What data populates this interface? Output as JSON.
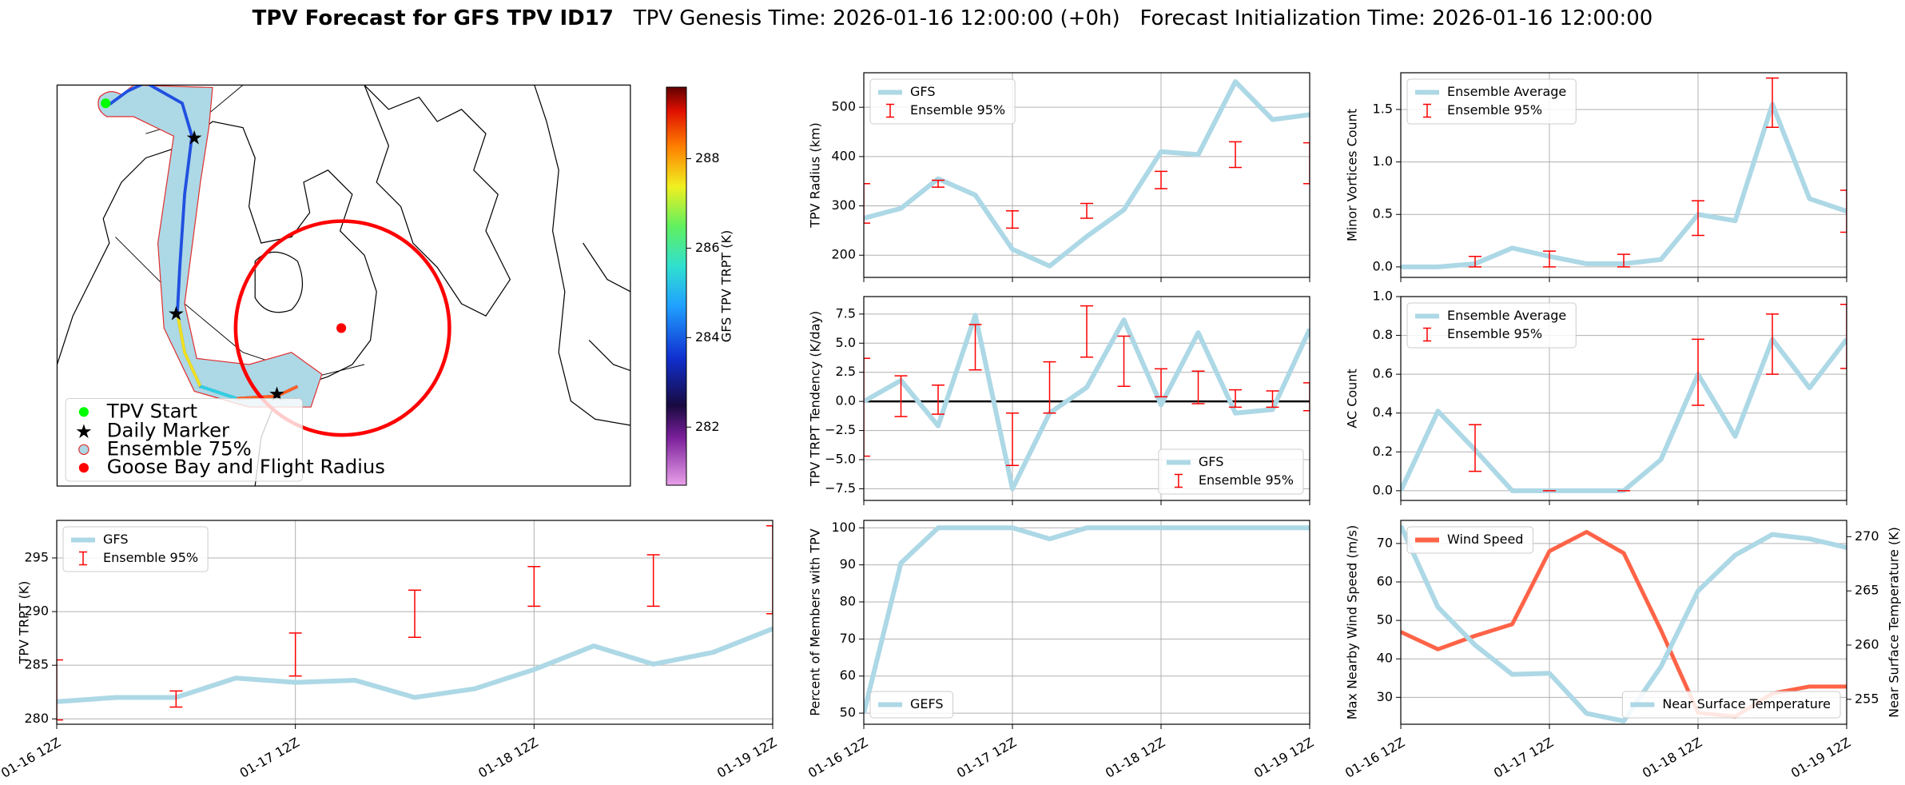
{
  "title": "TPV Forecast for GFS TPV ID17",
  "subtitle": "TPV Genesis Time: 2026-01-16 12:00:00 (+0h)   Forecast Initialization Time: 2026-01-16 12:00:00",
  "chart_data": [
    {
      "type": "map",
      "legend": [
        "TPV Start",
        "Daily Marker",
        "Ensemble 75%",
        "Goose Bay and Flight Radius"
      ],
      "colorbar": {
        "label": "GFS TPV TRPT (K)",
        "lim": [
          280.7,
          289.6
        ],
        "ticks": [
          282,
          284,
          286,
          288
        ]
      }
    },
    {
      "type": "line",
      "ylabel": "TPV Radius (km)",
      "legend": "upper left",
      "grid": true,
      "categories": [
        null,
        null,
        null,
        null,
        null,
        null,
        null,
        null,
        null,
        null,
        null,
        null,
        null
      ],
      "series": [
        {
          "name": "GFS",
          "color": "#add8e6",
          "values": [
            275,
            295,
            355,
            322,
            212,
            178,
            238,
            292,
            410,
            404,
            552,
            475,
            485
          ]
        }
      ],
      "errorbars": {
        "name": "Ensemble 95%",
        "color": "#ff0000",
        "low": [
          265,
          null,
          338,
          null,
          255,
          null,
          275,
          null,
          335,
          null,
          378,
          null,
          345
        ],
        "high": [
          345,
          null,
          352,
          null,
          290,
          null,
          305,
          null,
          370,
          null,
          430,
          null,
          428
        ]
      },
      "ylim": [
        155,
        570
      ],
      "yticks": [
        200,
        300,
        400,
        500
      ]
    },
    {
      "type": "line",
      "ylabel": "Minor Vortices Count",
      "legend": "upper left",
      "grid": true,
      "categories": [
        null,
        null,
        null,
        null,
        null,
        null,
        null,
        null,
        null,
        null,
        null,
        null,
        null
      ],
      "series": [
        {
          "name": "Ensemble Average",
          "color": "#add8e6",
          "values": [
            0,
            0,
            0.03,
            0.18,
            0.1,
            0.03,
            0.03,
            0.07,
            0.5,
            0.44,
            1.55,
            0.65,
            0.53
          ]
        }
      ],
      "errorbars": {
        "name": "Ensemble 95%",
        "color": "#ff0000",
        "low": [
          null,
          null,
          0,
          null,
          0,
          null,
          0,
          null,
          0.3,
          null,
          1.33,
          null,
          0.33
        ],
        "high": [
          null,
          null,
          0.1,
          null,
          0.15,
          null,
          0.12,
          null,
          0.63,
          null,
          1.8,
          null,
          0.73
        ]
      },
      "ylim": [
        -0.1,
        1.85
      ],
      "yticks": [
        {
          "value": 0,
          "label": "0.0"
        },
        {
          "value": 0.5,
          "label": "0.5"
        },
        {
          "value": 1,
          "label": "1.0"
        },
        1.5
      ]
    },
    {
      "type": "line",
      "ylabel": "TPV TRPT Tendency (K/day)",
      "legend": "lower right",
      "grid": true,
      "hline": 0,
      "categories": [
        null,
        null,
        null,
        null,
        null,
        null,
        null,
        null,
        null,
        null,
        null,
        null,
        null
      ],
      "series": [
        {
          "name": "GFS",
          "color": "#add8e6",
          "values": [
            0,
            1.8,
            -2.1,
            7.4,
            -7.5,
            -1,
            1.2,
            7,
            -0.3,
            5.9,
            -1,
            -0.7,
            6.2
          ]
        }
      ],
      "errorbars": {
        "name": "Ensemble 95%",
        "color": "#ff0000",
        "low": [
          -4.7,
          -1.3,
          -1.1,
          2.7,
          -5.5,
          -1,
          3.8,
          1.3,
          0.4,
          -0.2,
          -0.5,
          -0.5,
          -0.8
        ],
        "high": [
          3.7,
          2.2,
          1.4,
          6.6,
          -1,
          3.4,
          8.2,
          5.6,
          2.8,
          2.6,
          1,
          0.9,
          1.6
        ]
      },
      "ylim": [
        -8.5,
        9
      ],
      "yticks": [
        {
          "value": -7.5,
          "label": "−7.5"
        },
        {
          "value": -5,
          "label": "−5.0"
        },
        {
          "value": -2.5,
          "label": "−2.5"
        },
        {
          "value": 0,
          "label": "0.0"
        },
        2.5,
        {
          "value": 5,
          "label": "5.0"
        },
        7.5
      ]
    },
    {
      "type": "line",
      "ylabel": "AC Count",
      "legend": "upper left",
      "grid": true,
      "categories": [
        null,
        null,
        null,
        null,
        null,
        null,
        null,
        null,
        null,
        null,
        null,
        null,
        null
      ],
      "series": [
        {
          "name": "Ensemble Average",
          "color": "#add8e6",
          "values": [
            0,
            0.41,
            0.21,
            0,
            0,
            0,
            0,
            0.16,
            0.6,
            0.28,
            0.78,
            0.53,
            0.78
          ]
        }
      ],
      "errorbars": {
        "name": "Ensemble 95%",
        "color": "#ff0000",
        "low": [
          null,
          null,
          0.1,
          null,
          0,
          null,
          0,
          null,
          0.44,
          null,
          0.6,
          null,
          0.63
        ],
        "high": [
          null,
          null,
          0.34,
          null,
          0,
          null,
          0,
          null,
          0.78,
          null,
          0.91,
          null,
          0.96
        ]
      },
      "ylim": [
        -0.05,
        1
      ],
      "yticks": [
        {
          "value": 0,
          "label": "0.0"
        },
        0.2,
        0.4,
        0.6,
        0.8,
        {
          "value": 1,
          "label": "1.0"
        }
      ]
    },
    {
      "type": "line",
      "ylabel": "TPV TRPT (K)",
      "legend": "upper left",
      "grid": true,
      "categories": [
        "01-16 12Z",
        null,
        null,
        null,
        "01-17 12Z",
        null,
        null,
        null,
        "01-18 12Z",
        null,
        null,
        null,
        "01-19 12Z"
      ],
      "series": [
        {
          "name": "GFS",
          "color": "#add8e6",
          "values": [
            281.6,
            282,
            282,
            283.8,
            283.4,
            283.6,
            282,
            282.8,
            284.6,
            286.8,
            285.1,
            286.2,
            288.4
          ]
        }
      ],
      "errorbars": {
        "name": "Ensemble 95%",
        "color": "#ff0000",
        "low": [
          279.9,
          null,
          281.1,
          null,
          284,
          null,
          287.6,
          null,
          290.5,
          null,
          290.5,
          null,
          289.8
        ],
        "high": [
          285.5,
          null,
          282.6,
          null,
          288,
          null,
          292,
          null,
          294.2,
          null,
          295.3,
          null,
          298
        ]
      },
      "ylim": [
        279.5,
        298.5
      ],
      "yticks": [
        280,
        285,
        290,
        295
      ]
    },
    {
      "type": "line",
      "ylabel": "Percent of Members with TPV",
      "legend": "lower left",
      "grid": true,
      "categories": [
        "01-16 12Z",
        null,
        null,
        null,
        "01-17 12Z",
        null,
        null,
        null,
        "01-18 12Z",
        null,
        null,
        null,
        "01-19 12Z"
      ],
      "series": [
        {
          "name": "GEFS",
          "color": "#add8e6",
          "values": [
            50,
            90.5,
            100,
            100,
            100,
            97,
            100,
            100,
            100,
            100,
            100,
            100,
            100
          ]
        }
      ],
      "ylim": [
        47,
        102
      ],
      "yticks": [
        50,
        60,
        70,
        80,
        90,
        100
      ]
    },
    {
      "type": "line",
      "ylabel": "Max Nearby Wind Speed (m/s)",
      "y2label": "Near Surface Temperature (K)",
      "ycolor": "#ff6347",
      "y2color": "#4169e1",
      "grid": true,
      "categories": [
        "01-16 12Z",
        null,
        null,
        null,
        "01-17 12Z",
        null,
        null,
        null,
        "01-18 12Z",
        null,
        null,
        null,
        "01-19 12Z"
      ],
      "series": [
        {
          "name": "Wind Speed",
          "color": "#ff6347",
          "legend": "upper left",
          "values": [
            47,
            42.5,
            46,
            49,
            68,
            73,
            67.5,
            47.5,
            26,
            25,
            31,
            32.8,
            32.8
          ]
        },
        {
          "name": "Near Surface Temperature",
          "color": "#add8e6",
          "axis": "y2",
          "legend": "lower right",
          "values": [
            271,
            263.5,
            260,
            257.3,
            257.4,
            253.7,
            253,
            258,
            265,
            268.3,
            270.2,
            269.8,
            269
          ]
        }
      ],
      "ylim": [
        23,
        76
      ],
      "yticks": [
        30,
        40,
        50,
        60,
        70
      ],
      "y2lim": [
        252.7,
        271.5
      ],
      "y2ticks": [
        255,
        260,
        265,
        270
      ]
    }
  ]
}
